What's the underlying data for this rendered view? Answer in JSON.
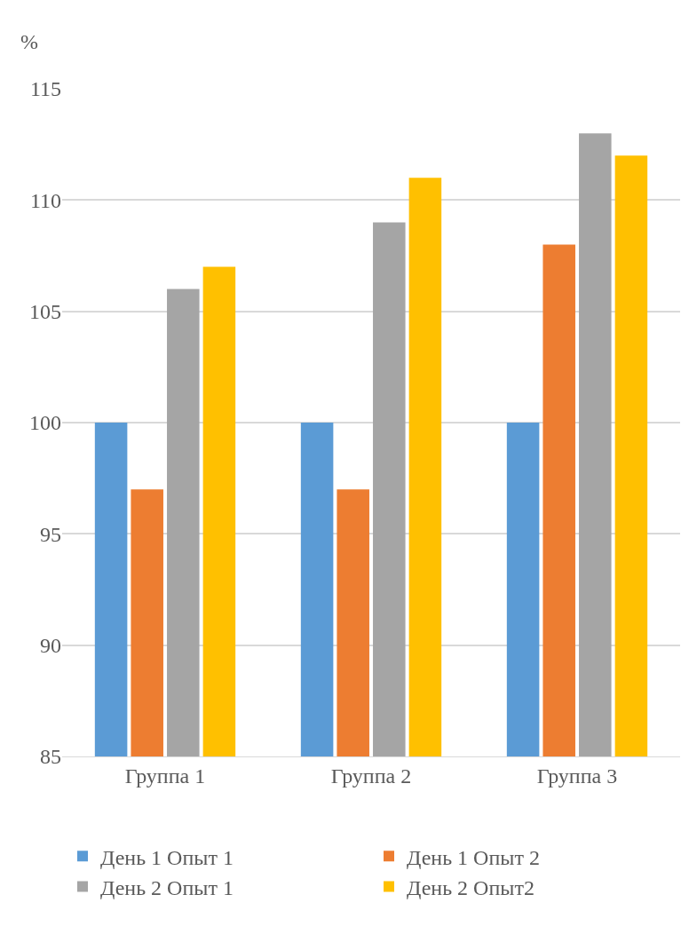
{
  "chart_data": {
    "type": "bar",
    "ylabel": "%",
    "categories": [
      "Группа 1",
      "Группа 2",
      "Группа 3"
    ],
    "series": [
      {
        "name": "День 1 Опыт 1",
        "color": "#5b9bd5",
        "values": [
          100,
          100,
          100
        ]
      },
      {
        "name": "День 1 Опыт 2",
        "color": "#ed7d31",
        "values": [
          97,
          97,
          108
        ]
      },
      {
        "name": "День 2 Опыт 1",
        "color": "#a5a5a5",
        "values": [
          106,
          109,
          113
        ]
      },
      {
        "name": "День 2 Опыт2",
        "color": "#ffc000",
        "values": [
          107,
          111,
          112
        ]
      }
    ],
    "ylim": [
      85,
      115
    ],
    "yticks": [
      85,
      90,
      95,
      100,
      105,
      110,
      115
    ],
    "grid": "y",
    "legend": "bottom"
  }
}
